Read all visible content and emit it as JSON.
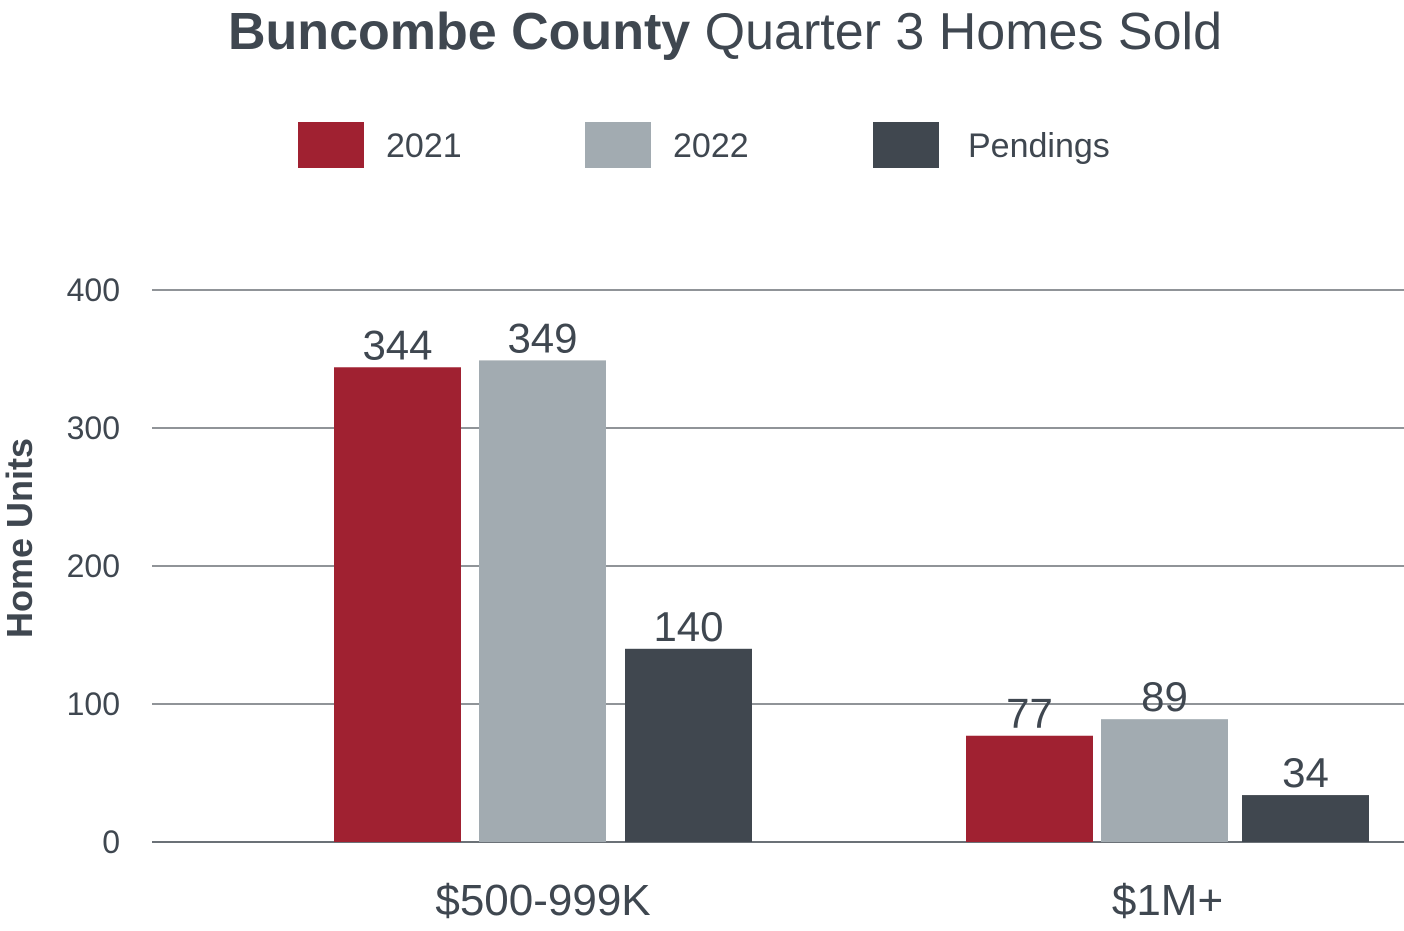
{
  "chart_data": {
    "type": "bar",
    "title_bold": "Buncombe County",
    "title_light": "Quarter 3 Homes Sold",
    "ylabel": "Home Units",
    "xlabel": "",
    "ylim": [
      0,
      400
    ],
    "yticks": [
      0,
      100,
      200,
      300,
      400
    ],
    "categories": [
      "$500-999K",
      "$1M+"
    ],
    "grid": true,
    "legend_position": "top",
    "series": [
      {
        "name": "2021",
        "values": [
          344,
          77
        ],
        "color": "#a02131"
      },
      {
        "name": "2022",
        "values": [
          349,
          89
        ],
        "color": "#a2abb1"
      },
      {
        "name": "Pendings",
        "values": [
          140,
          34
        ],
        "color": "#40474f"
      }
    ]
  }
}
